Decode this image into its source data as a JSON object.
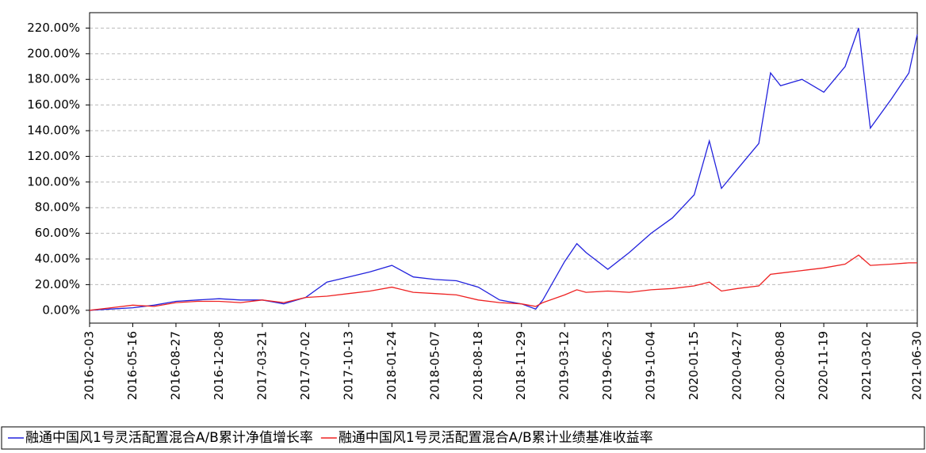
{
  "chart_data": {
    "type": "line",
    "x": [
      "2016-02-03",
      "2016-03-25",
      "2016-05-16",
      "2016-07-06",
      "2016-08-27",
      "2016-10-17",
      "2016-12-08",
      "2017-01-28",
      "2017-03-21",
      "2017-05-11",
      "2017-07-02",
      "2017-08-22",
      "2017-10-13",
      "2017-12-03",
      "2018-01-24",
      "2018-03-16",
      "2018-05-07",
      "2018-06-27",
      "2018-08-18",
      "2018-10-08",
      "2018-11-29",
      "2019-01-02",
      "2019-01-19",
      "2019-03-12",
      "2019-04-10",
      "2019-05-02",
      "2019-06-23",
      "2019-08-13",
      "2019-10-04",
      "2019-11-24",
      "2020-01-15",
      "2020-02-20",
      "2020-03-20",
      "2020-04-27",
      "2020-06-17",
      "2020-07-15",
      "2020-08-08",
      "2020-09-28",
      "2020-11-19",
      "2021-01-09",
      "2021-02-10",
      "2021-03-10",
      "2021-04-30",
      "2021-06-10",
      "2021-06-30"
    ],
    "series": [
      {
        "name": "融通中国风1号灵活配置混合A/B累计净值增长率",
        "color": "#2222dd",
        "values": [
          0,
          1,
          2,
          4,
          7,
          8,
          9,
          8,
          8,
          5,
          10,
          22,
          26,
          30,
          35,
          26,
          24,
          23,
          18,
          8,
          5,
          1,
          8,
          38,
          52,
          45,
          32,
          45,
          60,
          72,
          90,
          132,
          95,
          110,
          130,
          185,
          175,
          180,
          170,
          190,
          220,
          142,
          165,
          185,
          215
        ]
      },
      {
        "name": "融通中国风1号灵活配置混合A/B累计业绩基准收益率",
        "color": "#ee2222",
        "values": [
          0,
          2,
          4,
          3,
          6,
          7,
          7,
          6,
          8,
          6,
          10,
          11,
          13,
          15,
          18,
          14,
          13,
          12,
          8,
          6,
          5,
          3,
          6,
          12,
          16,
          14,
          15,
          14,
          16,
          17,
          19,
          22,
          15,
          17,
          19,
          28,
          29,
          31,
          33,
          36,
          43,
          35,
          36,
          37,
          37
        ]
      }
    ],
    "xlim": [
      "2016-02-03",
      "2021-06-30"
    ],
    "xticks": [
      "2016-02-03",
      "2016-05-16",
      "2016-08-27",
      "2016-12-08",
      "2017-03-21",
      "2017-07-02",
      "2017-10-13",
      "2018-01-24",
      "2018-05-07",
      "2018-08-18",
      "2018-11-29",
      "2019-03-12",
      "2019-06-23",
      "2019-10-04",
      "2020-01-15",
      "2020-04-27",
      "2020-08-08",
      "2020-11-19",
      "2021-03-02",
      "2021-06-30"
    ],
    "ylim": [
      -10,
      232
    ],
    "yticks": [
      {
        "value": 0,
        "label": "0.00%"
      },
      {
        "value": 20,
        "label": "20.00%"
      },
      {
        "value": 40,
        "label": "40.00%"
      },
      {
        "value": 60,
        "label": "60.00%"
      },
      {
        "value": 80,
        "label": "80.00%"
      },
      {
        "value": 100,
        "label": "100.00%"
      },
      {
        "value": 120,
        "label": "120.00%"
      },
      {
        "value": 140,
        "label": "140.00%"
      },
      {
        "value": 160,
        "label": "160.00%"
      },
      {
        "value": 180,
        "label": "180.00%"
      },
      {
        "value": 200,
        "label": "200.00%"
      },
      {
        "value": 220,
        "label": "220.00%"
      }
    ],
    "grid": true
  }
}
